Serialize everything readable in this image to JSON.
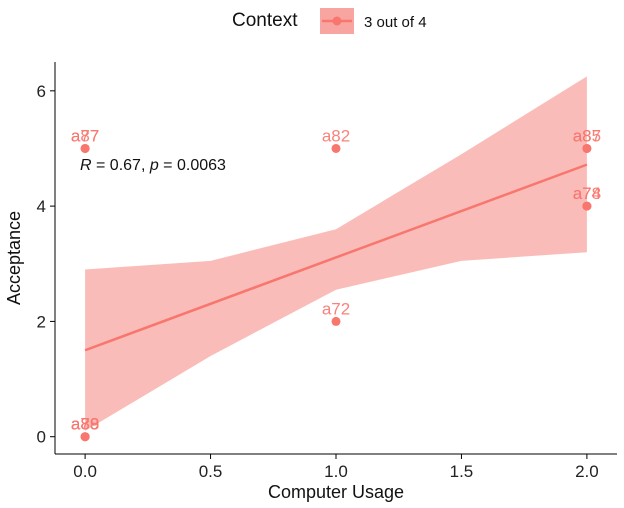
{
  "chart_data": {
    "type": "scatter",
    "xlabel": "Computer Usage",
    "ylabel": "Acceptance",
    "xlim": [
      -0.12,
      2.12
    ],
    "ylim": [
      -0.3,
      6.5
    ],
    "xticks": [
      "0.0",
      "0.5",
      "1.0",
      "1.5",
      "2.0"
    ],
    "yticks": [
      "0",
      "2",
      "4",
      "6"
    ],
    "legend": {
      "title": "Context",
      "position": "top"
    },
    "grid": false,
    "color": "#F8766D",
    "band_color": "#F8A5A1",
    "series": [
      {
        "name": "3 out of 4",
        "points": [
          {
            "x": 0,
            "y": 5,
            "label": "a77"
          },
          {
            "x": 0,
            "y": 5,
            "label": "a87"
          },
          {
            "x": 1,
            "y": 5,
            "label": "a82"
          },
          {
            "x": 2,
            "y": 5,
            "label": "a85"
          },
          {
            "x": 2,
            "y": 5,
            "label": "a87"
          },
          {
            "x": 2,
            "y": 4,
            "label": "a74"
          },
          {
            "x": 2,
            "y": 4,
            "label": "a78"
          },
          {
            "x": 1,
            "y": 2,
            "label": "a72"
          },
          {
            "x": 0,
            "y": 0,
            "label": "a79"
          },
          {
            "x": 0,
            "y": 0,
            "label": "a88"
          },
          {
            "x": 0,
            "y": 0,
            "label": "a89"
          }
        ],
        "regression": {
          "x": [
            0,
            2
          ],
          "y": [
            1.5,
            4.72
          ]
        },
        "confidence_band": {
          "x": [
            0,
            0.5,
            1,
            1.5,
            2
          ],
          "lower": [
            0.1,
            1.4,
            2.55,
            3.05,
            3.2
          ],
          "upper": [
            2.9,
            3.05,
            3.6,
            4.9,
            6.25
          ]
        }
      }
    ],
    "annotation": {
      "r_symbol": "R",
      "r_text": " = 0.67, ",
      "p_symbol": "p",
      "p_text": " = 0.0063"
    }
  }
}
